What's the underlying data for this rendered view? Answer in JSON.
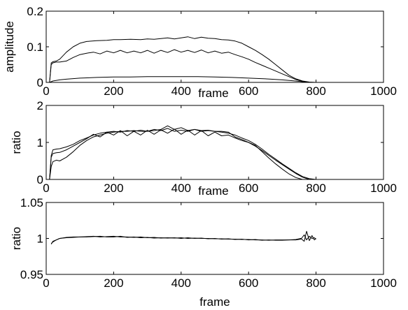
{
  "chart_data": [
    {
      "type": "line",
      "title": "",
      "xlabel": "frame",
      "ylabel": "amplitude",
      "xlim": [
        0,
        1000
      ],
      "ylim": [
        0,
        0.2
      ],
      "x_ticks": [
        "0",
        "200",
        "400",
        "600",
        "800",
        "1000"
      ],
      "y_ticks": [
        "0",
        "0.1",
        "0.2"
      ],
      "grid": false,
      "series": [
        {
          "x": [
            10,
            15,
            20,
            30,
            40,
            60,
            80,
            100,
            120,
            150,
            180,
            200,
            220,
            250,
            280,
            300,
            320,
            340,
            360,
            380,
            400,
            420,
            440,
            460,
            480,
            500,
            520,
            540,
            560,
            580,
            600,
            620,
            640,
            660,
            680,
            700,
            720,
            740,
            760,
            780,
            800
          ],
          "values": [
            0.0,
            0.055,
            0.058,
            0.06,
            0.065,
            0.085,
            0.1,
            0.11,
            0.115,
            0.117,
            0.118,
            0.12,
            0.12,
            0.121,
            0.12,
            0.122,
            0.121,
            0.123,
            0.125,
            0.122,
            0.125,
            0.128,
            0.123,
            0.127,
            0.124,
            0.123,
            0.12,
            0.119,
            0.116,
            0.11,
            0.1,
            0.09,
            0.078,
            0.065,
            0.05,
            0.035,
            0.02,
            0.01,
            0.004,
            0.001,
            0.0
          ]
        },
        {
          "x": [
            10,
            15,
            20,
            30,
            40,
            60,
            80,
            100,
            120,
            140,
            160,
            180,
            200,
            220,
            240,
            260,
            280,
            300,
            320,
            340,
            360,
            380,
            400,
            420,
            440,
            460,
            480,
            500,
            520,
            540,
            560,
            580,
            600,
            620,
            640,
            660,
            680,
            700,
            720,
            740,
            760,
            780
          ],
          "values": [
            0.0,
            0.05,
            0.055,
            0.057,
            0.057,
            0.06,
            0.07,
            0.078,
            0.082,
            0.085,
            0.08,
            0.088,
            0.083,
            0.09,
            0.083,
            0.088,
            0.083,
            0.09,
            0.082,
            0.09,
            0.084,
            0.092,
            0.085,
            0.09,
            0.084,
            0.091,
            0.083,
            0.088,
            0.082,
            0.085,
            0.078,
            0.072,
            0.065,
            0.056,
            0.048,
            0.04,
            0.032,
            0.024,
            0.016,
            0.008,
            0.003,
            0.0
          ]
        },
        {
          "x": [
            10,
            20,
            40,
            60,
            100,
            150,
            200,
            250,
            300,
            350,
            400,
            450,
            500,
            550,
            600,
            650,
            700,
            750,
            780
          ],
          "values": [
            0.0,
            0.004,
            0.007,
            0.009,
            0.012,
            0.014,
            0.015,
            0.015,
            0.016,
            0.016,
            0.016,
            0.016,
            0.015,
            0.014,
            0.012,
            0.01,
            0.007,
            0.003,
            0.0
          ]
        }
      ]
    },
    {
      "type": "line",
      "title": "",
      "xlabel": "frame",
      "ylabel": "ratio",
      "xlim": [
        0,
        1000
      ],
      "ylim": [
        0,
        2
      ],
      "x_ticks": [
        "0",
        "200",
        "400",
        "600",
        "800",
        "1000"
      ],
      "y_ticks": [
        "0",
        "1",
        "2"
      ],
      "grid": false,
      "series": [
        {
          "x": [
            10,
            15,
            20,
            30,
            40,
            60,
            80,
            100,
            120,
            140,
            160,
            180,
            200,
            220,
            240,
            260,
            280,
            300,
            320,
            340,
            360,
            380,
            400,
            420,
            440,
            460,
            480,
            500,
            520,
            540,
            560,
            580,
            600,
            620,
            640,
            660,
            680,
            700,
            720,
            740,
            760,
            780,
            800
          ],
          "values": [
            0.0,
            0.65,
            0.8,
            0.82,
            0.83,
            0.88,
            0.95,
            1.05,
            1.12,
            1.2,
            1.25,
            1.28,
            1.3,
            1.28,
            1.32,
            1.3,
            1.33,
            1.3,
            1.35,
            1.32,
            1.38,
            1.3,
            1.33,
            1.3,
            1.35,
            1.32,
            1.33,
            1.3,
            1.28,
            1.25,
            1.2,
            1.12,
            1.05,
            0.95,
            0.82,
            0.68,
            0.55,
            0.42,
            0.3,
            0.18,
            0.08,
            0.02,
            0.0
          ]
        },
        {
          "x": [
            10,
            15,
            20,
            30,
            40,
            60,
            80,
            100,
            120,
            140,
            160,
            180,
            200,
            220,
            240,
            260,
            280,
            300,
            320,
            340,
            360,
            380,
            400,
            420,
            440,
            460,
            480,
            500,
            520,
            540,
            560,
            580,
            600,
            620,
            640,
            660,
            680,
            700,
            720,
            740,
            760,
            780
          ],
          "values": [
            0.0,
            0.6,
            0.7,
            0.72,
            0.73,
            0.8,
            0.9,
            1.0,
            1.1,
            1.22,
            1.15,
            1.28,
            1.2,
            1.32,
            1.18,
            1.3,
            1.2,
            1.33,
            1.22,
            1.34,
            1.25,
            1.36,
            1.22,
            1.33,
            1.2,
            1.32,
            1.18,
            1.28,
            1.18,
            1.2,
            1.12,
            1.05,
            1.0,
            0.9,
            0.78,
            0.65,
            0.52,
            0.4,
            0.28,
            0.16,
            0.06,
            0.0
          ]
        },
        {
          "x": [
            10,
            15,
            20,
            30,
            40,
            60,
            80,
            100,
            120,
            140,
            160,
            180,
            200,
            220,
            240,
            260,
            280,
            300,
            320,
            340,
            360,
            380,
            400,
            420,
            440,
            460,
            480,
            500,
            520,
            540,
            560,
            580,
            600,
            620,
            640,
            660,
            680,
            700,
            720,
            740,
            760
          ],
          "values": [
            0.0,
            0.35,
            0.48,
            0.52,
            0.5,
            0.6,
            0.75,
            0.92,
            1.05,
            1.15,
            1.2,
            1.25,
            1.28,
            1.3,
            1.3,
            1.32,
            1.3,
            1.3,
            1.32,
            1.35,
            1.45,
            1.35,
            1.4,
            1.32,
            1.35,
            1.3,
            1.32,
            1.3,
            1.3,
            1.28,
            1.15,
            1.08,
            1.0,
            0.92,
            0.75,
            0.58,
            0.42,
            0.28,
            0.15,
            0.05,
            0.0
          ]
        }
      ]
    },
    {
      "type": "line",
      "title": "",
      "xlabel": "frame",
      "ylabel": "ratio",
      "xlim": [
        0,
        1000
      ],
      "ylim": [
        0.95,
        1.05
      ],
      "x_ticks": [
        "0",
        "200",
        "400",
        "600",
        "800",
        "1000"
      ],
      "y_ticks": [
        "0.95",
        "1",
        "1.05"
      ],
      "grid": false,
      "series": [
        {
          "x": [
            15,
            20,
            30,
            40,
            60,
            80,
            100,
            120,
            140,
            160,
            180,
            200,
            220,
            240,
            260,
            280,
            300,
            320,
            340,
            360,
            380,
            400,
            420,
            440,
            460,
            480,
            500,
            520,
            540,
            560,
            580,
            600,
            620,
            640,
            660,
            680,
            700,
            720,
            740,
            755,
            765,
            772,
            780,
            788,
            795,
            800
          ],
          "values": [
            0.993,
            0.995,
            0.998,
            1.0,
            1.001,
            1.0015,
            1.002,
            1.002,
            1.0025,
            1.003,
            1.002,
            1.002,
            1.003,
            1.0015,
            1.002,
            1.001,
            1.0015,
            1.0005,
            1.001,
            1.0005,
            1.001,
            1.0,
            1.001,
            1.0,
            1.0005,
            0.9995,
            1.0,
            0.999,
            0.9995,
            0.9985,
            0.999,
            0.998,
            0.9985,
            0.9975,
            0.998,
            0.9975,
            0.9975,
            0.998,
            0.998,
            0.999,
            1.005,
            0.998,
            1.003,
            1.0,
            1.001,
            0.999
          ]
        },
        {
          "x": [
            15,
            20,
            30,
            40,
            60,
            80,
            100,
            120,
            140,
            160,
            180,
            200,
            220,
            240,
            260,
            280,
            300,
            320,
            340,
            360,
            380,
            400,
            420,
            440,
            460,
            480,
            500,
            520,
            540,
            560,
            580,
            600,
            620,
            640,
            660,
            680,
            700,
            720,
            740,
            755,
            765,
            772,
            780,
            788,
            795,
            800
          ],
          "values": [
            0.992,
            0.996,
            0.998,
            1.0,
            1.0015,
            1.002,
            1.002,
            1.0025,
            1.003,
            1.002,
            1.0025,
            1.003,
            1.002,
            1.002,
            1.0015,
            1.002,
            1.001,
            1.0015,
            1.0005,
            1.001,
            1.0005,
            1.001,
            1.0,
            1.0005,
            1.0,
            1.0,
            0.9995,
            0.9995,
            0.999,
            0.999,
            0.9985,
            0.9985,
            0.998,
            0.998,
            0.9975,
            0.998,
            0.998,
            0.998,
            0.9985,
            1.0,
            0.996,
            1.01,
            0.997,
            1.004,
            0.998,
            1.0
          ]
        }
      ]
    }
  ]
}
